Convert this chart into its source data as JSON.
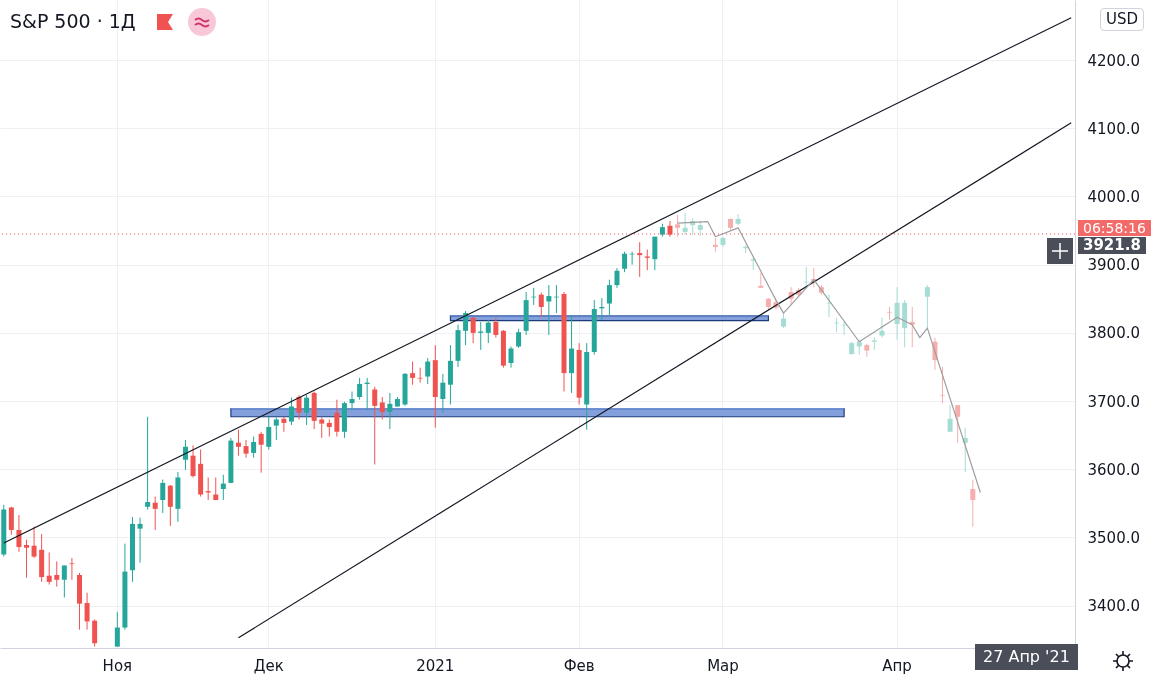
{
  "chart_data": {
    "type": "candlestick",
    "title": "S&P 500 · 1Д",
    "categories": [
      null,
      null,
      null,
      null,
      null,
      null,
      null,
      null,
      null,
      null,
      null,
      null,
      null,
      null,
      null,
      "Ноя",
      null,
      null,
      null,
      null,
      null,
      null,
      null,
      null,
      null,
      null,
      null,
      null,
      null,
      null,
      null,
      null,
      null,
      null,
      null,
      "Дек",
      null,
      null,
      null,
      null,
      null,
      null,
      null,
      null,
      null,
      null,
      null,
      null,
      null,
      null,
      null,
      null,
      null,
      null,
      null,
      null,
      null,
      "2021",
      null,
      null,
      null,
      null,
      null,
      null,
      null,
      null,
      null,
      null,
      null,
      null,
      null,
      null,
      null,
      null,
      null,
      null,
      "Фев",
      null,
      null,
      null,
      null,
      null,
      null,
      null,
      null,
      null,
      null,
      null,
      null,
      null,
      null,
      null,
      null,
      null,
      null,
      "Мар",
      null,
      null,
      null,
      null,
      null,
      null,
      null,
      null,
      null,
      null,
      null,
      null,
      null,
      null,
      null,
      null,
      null,
      null,
      null,
      null,
      null,
      null,
      "Апр",
      null,
      null,
      null,
      null,
      null,
      null,
      null,
      null,
      null,
      null,
      null,
      null,
      null,
      null,
      null,
      null,
      null,
      null,
      null,
      null,
      null,
      null,
      null
    ],
    "ohlc": [
      [
        3475,
        3548,
        3472,
        3541
      ],
      [
        3544,
        3545,
        3504,
        3511
      ],
      [
        3511,
        3533,
        3479,
        3486
      ],
      [
        3489,
        3497,
        3441,
        3485
      ],
      [
        3488,
        3516,
        3470,
        3472
      ],
      [
        3482,
        3505,
        3435,
        3442
      ],
      [
        3444,
        3478,
        3431,
        3435
      ],
      [
        3445,
        3465,
        3428,
        3438
      ],
      [
        3438,
        3459,
        3412,
        3459
      ],
      [
        3462,
        3470,
        3438,
        3461
      ],
      [
        3445,
        3448,
        3365,
        3403
      ],
      [
        3404,
        3419,
        3365,
        3377
      ],
      [
        3378,
        3380,
        3340,
        3345
      ],
      null,
      null,
      [
        3340,
        3391,
        3340,
        3368
      ],
      [
        3368,
        3491,
        3365,
        3450
      ],
      [
        3452,
        3530,
        3435,
        3520
      ],
      [
        3513,
        3529,
        3463,
        3520
      ],
      [
        3545,
        3677,
        3541,
        3552
      ],
      [
        3551,
        3560,
        3511,
        3542
      ],
      [
        3555,
        3585,
        3536,
        3580
      ],
      [
        3576,
        3577,
        3517,
        3545
      ],
      [
        3542,
        3596,
        3523,
        3588
      ],
      [
        3614,
        3643,
        3599,
        3633
      ],
      [
        3620,
        3635,
        3588,
        3590
      ],
      [
        3608,
        3629,
        3560,
        3563
      ],
      [
        3568,
        3588,
        3555,
        3566
      ],
      [
        3563,
        3588,
        3555,
        3555
      ],
      [
        3571,
        3592,
        3555,
        3579
      ],
      [
        3580,
        3646,
        3580,
        3642
      ],
      [
        3639,
        3658,
        3620,
        3633
      ],
      [
        3634,
        3643,
        3617,
        3623
      ],
      [
        3624,
        3648,
        3617,
        3640
      ],
      [
        3652,
        3655,
        3595,
        3636
      ],
      [
        3633,
        3677,
        3629,
        3662
      ],
      [
        3664,
        3676,
        3643,
        3673
      ],
      [
        3674,
        3677,
        3655,
        3668
      ],
      [
        3670,
        3705,
        3665,
        3692
      ],
      [
        3706,
        3709,
        3673,
        3683
      ],
      [
        3683,
        3709,
        3665,
        3705
      ],
      [
        3712,
        3714,
        3659,
        3671
      ],
      [
        3673,
        3676,
        3646,
        3667
      ],
      [
        3668,
        3673,
        3648,
        3662
      ],
      [
        3683,
        3702,
        3648,
        3655
      ],
      [
        3655,
        3699,
        3646,
        3697
      ],
      [
        3697,
        3714,
        3687,
        3703
      ],
      [
        3706,
        3734,
        3702,
        3725
      ],
      [
        3725,
        3734,
        3687,
        3727
      ],
      [
        3717,
        3721,
        3607,
        3693
      ],
      [
        3698,
        3706,
        3673,
        3684
      ],
      [
        3684,
        3712,
        3659,
        3696
      ],
      [
        3692,
        3706,
        3692,
        3703
      ],
      [
        3695,
        3741,
        3693,
        3740
      ],
      [
        3741,
        3758,
        3724,
        3734
      ],
      [
        3734,
        3749,
        3727,
        3733
      ],
      [
        3736,
        3763,
        3725,
        3758
      ],
      [
        3760,
        3782,
        3661,
        3706
      ],
      [
        3703,
        3740,
        3683,
        3727
      ],
      [
        3724,
        3782,
        3695,
        3759
      ],
      [
        3759,
        3812,
        3750,
        3804
      ],
      [
        3803,
        3832,
        3782,
        3829
      ],
      [
        3822,
        3823,
        3785,
        3800
      ],
      [
        3800,
        3816,
        3775,
        3802
      ],
      [
        3800,
        3819,
        3785,
        3815
      ],
      [
        3816,
        3822,
        3793,
        3797
      ],
      [
        3803,
        3804,
        3749,
        3752
      ],
      [
        3756,
        3780,
        3749,
        3777
      ],
      [
        3780,
        3806,
        3778,
        3801
      ],
      [
        3803,
        3860,
        3797,
        3848
      ],
      [
        3852,
        3866,
        3841,
        3853
      ],
      [
        3856,
        3859,
        3823,
        3838
      ],
      [
        3846,
        3870,
        3797,
        3854
      ],
      [
        3852,
        3870,
        3829,
        3853
      ],
      [
        3857,
        3860,
        3714,
        3741
      ],
      [
        3741,
        3826,
        3712,
        3777
      ],
      [
        3775,
        3785,
        3695,
        3705
      ],
      [
        3695,
        3785,
        3658,
        3772
      ],
      [
        3772,
        3848,
        3768,
        3835
      ],
      [
        3836,
        3851,
        3819,
        3838
      ],
      [
        3843,
        3878,
        3826,
        3870
      ],
      [
        3870,
        3895,
        3866,
        3891
      ],
      [
        3894,
        3919,
        3889,
        3916
      ],
      [
        3915,
        3919,
        3900,
        3916
      ],
      [
        3917,
        3933,
        3882,
        3914
      ],
      [
        3912,
        3922,
        3892,
        3910
      ],
      [
        3908,
        3941,
        3892,
        3941
      ],
      [
        3944,
        3960,
        3941,
        3955
      ],
      [
        3957,
        3964,
        3941,
        3944
      ],
      [
        3959,
        3973,
        3941,
        3954
      ],
      [
        3948,
        3976,
        3944,
        3954
      ],
      [
        3958,
        3968,
        3944,
        3964
      ],
      [
        3951,
        3964,
        3942,
        3958
      ],
      null,
      [
        3929,
        3939,
        3919,
        3926
      ],
      [
        3929,
        3941,
        3926,
        3939
      ],
      [
        3967,
        3968,
        3951,
        3954
      ],
      [
        3960,
        3974,
        3958,
        3967
      ],
      [
        3924,
        3929,
        3917,
        3926
      ],
      [
        3906,
        3911,
        3892,
        3908
      ],
      [
        3869,
        3888,
        3866,
        3866
      ],
      [
        3850,
        3851,
        3834,
        3838
      ],
      [
        3845,
        3848,
        3834,
        3837
      ],
      [
        3809,
        3830,
        3807,
        3821
      ],
      [
        3860,
        3867,
        3841,
        3850
      ],
      [
        3863,
        3866,
        3853,
        3856
      ],
      [
        3874,
        3897,
        3867,
        3875
      ],
      [
        3879,
        3895,
        3867,
        3875
      ],
      [
        3867,
        3870,
        3856,
        3859
      ],
      [
        3843,
        3856,
        3823,
        3844
      ],
      [
        3814,
        3822,
        3801,
        3815
      ],
      [
        3811,
        3816,
        3797,
        3812
      ],
      [
        3769,
        3787,
        3768,
        3785
      ],
      [
        3780,
        3790,
        3768,
        3787
      ],
      [
        3782,
        3784,
        3765,
        3774
      ],
      [
        3787,
        3794,
        3775,
        3789
      ],
      [
        3796,
        3822,
        3793,
        3803
      ],
      [
        3830,
        3838,
        3819,
        3829
      ],
      [
        3813,
        3867,
        3790,
        3844
      ],
      [
        3807,
        3848,
        3779,
        3844
      ],
      [
        3816,
        3838,
        3779,
        3812
      ],
      null,
      [
        3853,
        3870,
        3807,
        3867
      ],
      [
        3787,
        3793,
        3746,
        3760
      ],
      [
        3709,
        3750,
        3697,
        3708
      ],
      [
        3655,
        3694,
        3655,
        3674
      ],
      [
        3694,
        3694,
        3639,
        3677
      ],
      [
        3639,
        3661,
        3596,
        3646
      ],
      [
        3571,
        3585,
        3516,
        3555
      ],
      null,
      null,
      null,
      null,
      null,
      null,
      null,
      null,
      null,
      null,
      null,
      null,
      null
    ],
    "colors": [
      "#26a69a",
      "#ef5350",
      "#ef5350",
      "#ef5350",
      "#ef5350",
      "#ef5350",
      "#ef5350",
      "#ef5350",
      "#26a69a",
      "#ef5350",
      "#ef5350",
      "#ef5350",
      "#ef5350",
      null,
      null,
      "#26a69a",
      "#26a69a",
      "#26a69a",
      "#26a69a",
      "#26a69a",
      "#ef5350",
      "#26a69a",
      "#ef5350",
      "#26a69a",
      "#26a69a",
      "#ef5350",
      "#ef5350",
      "#ef5350",
      "#ef5350",
      "#26a69a",
      "#26a69a",
      "#ef5350",
      "#ef5350",
      "#26a69a",
      "#ef5350",
      "#26a69a",
      "#26a69a",
      "#ef5350",
      "#26a69a",
      "#ef5350",
      "#26a69a",
      "#ef5350",
      "#ef5350",
      "#ef5350",
      "#ef5350",
      "#26a69a",
      "#26a69a",
      "#26a69a",
      "#26a69a",
      "#ef5350",
      "#ef5350",
      "#26a69a",
      "#26a69a",
      "#26a69a",
      "#ef5350",
      "#ef5350",
      "#26a69a",
      "#ef5350",
      "#26a69a",
      "#26a69a",
      "#26a69a",
      "#26a69a",
      "#ef5350",
      "#26a69a",
      "#26a69a",
      "#ef5350",
      "#ef5350",
      "#26a69a",
      "#26a69a",
      "#26a69a",
      "#26a69a",
      "#ef5350",
      "#26a69a",
      "#26a69a",
      "#ef5350",
      "#26a69a",
      "#ef5350",
      "#26a69a",
      "#26a69a",
      "#26a69a",
      "#26a69a",
      "#26a69a",
      "#26a69a",
      "#26a69a",
      "#ef5350",
      "#ef5350",
      "#26a69a",
      "#26a69a",
      "#ef5350",
      "#f5aeac",
      "#a5dcd3",
      "#a5dcd3",
      "#a5dcd3",
      null,
      "#f5aeac",
      "#a5dcd3",
      "#f5aeac",
      "#a5dcd3",
      "#a5dcd3",
      "#a5dcd3",
      "#f5aeac",
      "#f5aeac",
      "#f5aeac",
      "#a5dcd3",
      "#f5aeac",
      "#f5aeac",
      "#a5dcd3",
      "#f5aeac",
      "#f5aeac",
      "#a5dcd3",
      "#a5dcd3",
      "#a5dcd3",
      "#a5dcd3",
      "#a5dcd3",
      "#f5aeac",
      "#a5dcd3",
      "#a5dcd3",
      "#f5aeac",
      "#a5dcd3",
      "#a5dcd3",
      "#f5aeac",
      null,
      "#a5dcd3",
      "#f5aeac",
      "#f5aeac",
      "#a5dcd3",
      "#f5aeac",
      "#a5dcd3",
      "#f5aeac",
      null,
      null,
      null,
      null,
      null,
      null,
      null,
      null,
      null,
      null,
      null,
      null,
      null
    ],
    "series": [
      {
        "type": "line",
        "color": "#131722",
        "values": [
          3492,
          null,
          null,
          null,
          null,
          null,
          null,
          null,
          null,
          null,
          null,
          null,
          null,
          null,
          null,
          null,
          null,
          null,
          null,
          null,
          null,
          null,
          null,
          null,
          null,
          null,
          null,
          null,
          null,
          null,
          null,
          null,
          null,
          null,
          null,
          null,
          null,
          null,
          null,
          null,
          null,
          null,
          null,
          null,
          null,
          null,
          null,
          null,
          null,
          null,
          null,
          null,
          null,
          null,
          null,
          null,
          null,
          null,
          null,
          null,
          null,
          null,
          null,
          null,
          null,
          null,
          null,
          null,
          null,
          null,
          null,
          null,
          null,
          null,
          null,
          null,
          null,
          null,
          null,
          null,
          null,
          null,
          null,
          null,
          null,
          null,
          null,
          null,
          null,
          null,
          null,
          null,
          null,
          null,
          null,
          null,
          null,
          null,
          null,
          null,
          null,
          null,
          null,
          null,
          null,
          null,
          null,
          null,
          null,
          null,
          null,
          null,
          null,
          null,
          null,
          null,
          null,
          null,
          null,
          null,
          null,
          null,
          null,
          null,
          null,
          null,
          null,
          null,
          null,
          null,
          null,
          null,
          null,
          null,
          null,
          null,
          null,
          null,
          null,
          null,
          null,
          4262
        ]
      },
      {
        "type": "line",
        "color": "#131722",
        "values": [
          null,
          null,
          null,
          null,
          null,
          null,
          null,
          null,
          null,
          null,
          null,
          null,
          null,
          null,
          null,
          null,
          null,
          null,
          null,
          null,
          null,
          null,
          null,
          null,
          null,
          null,
          null,
          null,
          null,
          null,
          null,
          3353,
          null,
          null,
          null,
          null,
          null,
          null,
          null,
          null,
          null,
          null,
          null,
          null,
          null,
          null,
          null,
          null,
          null,
          null,
          null,
          null,
          null,
          null,
          null,
          null,
          null,
          null,
          null,
          null,
          null,
          null,
          null,
          null,
          null,
          null,
          null,
          null,
          null,
          null,
          null,
          null,
          null,
          null,
          null,
          null,
          null,
          null,
          null,
          null,
          null,
          null,
          null,
          null,
          null,
          null,
          null,
          null,
          null,
          null,
          null,
          null,
          null,
          null,
          null,
          null,
          null,
          null,
          null,
          null,
          null,
          null,
          null,
          null,
          null,
          null,
          null,
          null,
          null,
          null,
          null,
          null,
          null,
          null,
          null,
          null,
          null,
          null,
          null,
          null,
          null,
          null,
          null,
          null,
          null,
          null,
          null,
          null,
          null,
          null,
          null,
          null,
          null,
          null,
          null,
          null,
          null,
          null,
          null,
          null,
          null,
          4108
        ]
      },
      {
        "type": "line",
        "color": "#9e9e9e",
        "values": [
          null,
          null,
          null,
          null,
          null,
          null,
          null,
          null,
          null,
          null,
          null,
          null,
          null,
          null,
          null,
          null,
          null,
          null,
          null,
          null,
          null,
          null,
          null,
          null,
          null,
          null,
          null,
          null,
          null,
          null,
          null,
          null,
          null,
          null,
          null,
          null,
          null,
          null,
          null,
          null,
          null,
          null,
          null,
          null,
          null,
          null,
          null,
          null,
          null,
          null,
          null,
          null,
          null,
          null,
          null,
          null,
          null,
          null,
          null,
          null,
          null,
          null,
          null,
          null,
          null,
          null,
          null,
          null,
          null,
          null,
          null,
          null,
          null,
          null,
          null,
          null,
          null,
          null,
          null,
          null,
          null,
          null,
          null,
          null,
          null,
          null,
          null,
          null,
          null,
          3961,
          null,
          null,
          null,
          3963,
          3941,
          null,
          null,
          3954,
          null,
          null,
          null,
          null,
          3848,
          3829,
          null,
          null,
          null,
          3878,
          null,
          null,
          null,
          null,
          null,
          3787,
          null,
          null,
          null,
          null,
          3823,
          null,
          3812,
          3793,
          3807,
          null,
          null,
          null,
          null,
          null,
          null,
          3566,
          null,
          null,
          null,
          null,
          null,
          null,
          null,
          null,
          null,
          null,
          null,
          null
        ]
      },
      {
        "type": "line",
        "color": "#6d8fd6",
        "upper": [
          null,
          null,
          null,
          null,
          null,
          null,
          null,
          null,
          null,
          null,
          null,
          null,
          null,
          null,
          null,
          null,
          null,
          null,
          null,
          null,
          null,
          null,
          null,
          null,
          null,
          null,
          null,
          null,
          null,
          null,
          null,
          null,
          null,
          null,
          null,
          null,
          null,
          null,
          null,
          null,
          null,
          null,
          null,
          null,
          null,
          null,
          null,
          null,
          null,
          null,
          null,
          null,
          null,
          null,
          null,
          null,
          null,
          null,
          null,
          3825,
          null,
          null,
          null,
          null,
          null,
          null,
          null,
          null,
          null,
          null,
          null,
          null,
          null,
          null,
          null,
          null,
          null,
          null,
          null,
          null,
          null,
          null,
          null,
          null,
          null,
          null,
          null,
          null,
          null,
          null,
          null,
          null,
          null,
          null,
          null,
          null,
          null,
          null,
          null,
          null,
          null,
          3825,
          null,
          null,
          null,
          null,
          null,
          null,
          null,
          null,
          null,
          null,
          null,
          null,
          null,
          null,
          null,
          null,
          null,
          null,
          null,
          null,
          null,
          null,
          null,
          null,
          null,
          null,
          null,
          null,
          null,
          null,
          null,
          null,
          null,
          null,
          null,
          null,
          null,
          null,
          null,
          null
        ],
        "lower": [
          null,
          null,
          null,
          null,
          null,
          null,
          null,
          null,
          null,
          null,
          null,
          null,
          null,
          null,
          null,
          null,
          null,
          null,
          null,
          null,
          null,
          null,
          null,
          null,
          null,
          null,
          null,
          null,
          null,
          null,
          null,
          null,
          null,
          null,
          null,
          null,
          null,
          null,
          null,
          null,
          null,
          null,
          null,
          null,
          null,
          null,
          null,
          null,
          null,
          null,
          null,
          null,
          null,
          null,
          null,
          null,
          null,
          null,
          null,
          3818,
          null,
          null,
          null,
          null,
          null,
          null,
          null,
          null,
          null,
          null,
          null,
          null,
          null,
          null,
          null,
          null,
          null,
          null,
          null,
          null,
          null,
          null,
          null,
          null,
          null,
          null,
          null,
          null,
          null,
          null,
          null,
          null,
          null,
          null,
          null,
          null,
          null,
          null,
          null,
          null,
          null,
          3818,
          null,
          null,
          null,
          null,
          null,
          null,
          null,
          null,
          null,
          null,
          null,
          null,
          null,
          null,
          null,
          null,
          null,
          null,
          null,
          null,
          null,
          null,
          null,
          null,
          null,
          null,
          null,
          null,
          null,
          null,
          null,
          null,
          null,
          null,
          null,
          null,
          null,
          null,
          null,
          null
        ],
        "values": [
          null,
          null,
          null,
          null,
          null,
          null,
          null,
          null,
          null,
          null,
          null,
          null,
          null,
          null,
          null,
          null,
          null,
          null,
          null,
          null,
          null,
          null,
          null,
          null,
          null,
          null,
          null,
          null,
          null,
          null,
          null,
          null,
          null,
          null,
          null,
          null,
          null,
          null,
          null,
          null,
          null,
          null,
          null,
          null,
          null,
          null,
          null,
          null,
          null,
          null,
          null,
          null,
          null,
          null,
          null,
          null,
          null,
          null,
          null,
          3825,
          null,
          null,
          null,
          null,
          null,
          null,
          null,
          null,
          null,
          null,
          null,
          null,
          null,
          null,
          null,
          null,
          null,
          null,
          null,
          null,
          null,
          null,
          null,
          null,
          null,
          null,
          null,
          null,
          null,
          null,
          null,
          null,
          null,
          null,
          null,
          null,
          null,
          null,
          null,
          null,
          null,
          3825,
          null,
          null,
          null,
          null,
          null,
          null,
          null,
          null,
          null,
          null,
          null,
          null,
          null,
          null,
          null,
          null,
          null,
          null,
          null,
          null,
          null,
          null,
          null,
          null,
          null,
          null,
          null,
          null,
          null,
          null,
          null,
          null,
          null,
          null,
          null,
          null,
          null,
          null,
          null,
          null
        ]
      },
      {
        "type": "line",
        "color": "#6d8fd6",
        "upper": [
          null,
          null,
          null,
          null,
          null,
          null,
          null,
          null,
          null,
          null,
          null,
          null,
          null,
          null,
          null,
          null,
          null,
          null,
          null,
          null,
          null,
          null,
          null,
          null,
          null,
          null,
          null,
          null,
          null,
          null,
          3689,
          null,
          null,
          null,
          null,
          null,
          null,
          null,
          null,
          null,
          null,
          null,
          null,
          null,
          null,
          null,
          null,
          null,
          null,
          null,
          null,
          null,
          null,
          null,
          null,
          null,
          null,
          null,
          null,
          null,
          null,
          null,
          null,
          null,
          null,
          null,
          null,
          null,
          null,
          null,
          null,
          null,
          null,
          null,
          null,
          null,
          null,
          null,
          null,
          null,
          null,
          null,
          null,
          null,
          null,
          null,
          null,
          null,
          null,
          null,
          null,
          null,
          null,
          null,
          null,
          null,
          null,
          null,
          null,
          null,
          null,
          null,
          null,
          null,
          null,
          null,
          null,
          null,
          null,
          null,
          null,
          3689,
          null,
          null,
          null,
          null,
          null,
          null,
          null,
          null,
          null,
          null,
          null,
          null,
          null,
          null,
          null,
          null,
          null,
          null,
          null,
          null,
          null,
          null,
          null,
          null,
          null,
          null,
          null,
          null,
          null,
          null
        ],
        "lower": [
          null,
          null,
          null,
          null,
          null,
          null,
          null,
          null,
          null,
          null,
          null,
          null,
          null,
          null,
          null,
          null,
          null,
          null,
          null,
          null,
          null,
          null,
          null,
          null,
          null,
          null,
          null,
          null,
          null,
          null,
          3677,
          null,
          null,
          null,
          null,
          null,
          null,
          null,
          null,
          null,
          null,
          null,
          null,
          null,
          null,
          null,
          null,
          null,
          null,
          null,
          null,
          null,
          null,
          null,
          null,
          null,
          null,
          null,
          null,
          null,
          null,
          null,
          null,
          null,
          null,
          null,
          null,
          null,
          null,
          null,
          null,
          null,
          null,
          null,
          null,
          null,
          null,
          null,
          null,
          null,
          null,
          null,
          null,
          null,
          null,
          null,
          null,
          null,
          null,
          null,
          null,
          null,
          null,
          null,
          null,
          null,
          null,
          null,
          null,
          null,
          null,
          null,
          null,
          null,
          null,
          null,
          null,
          null,
          null,
          null,
          null,
          3677,
          null,
          null,
          null,
          null,
          null,
          null,
          null,
          null,
          null,
          null,
          null,
          null,
          null,
          null,
          null,
          null,
          null,
          null,
          null,
          null,
          null,
          null,
          null,
          null,
          null,
          null,
          null,
          null,
          null,
          null
        ],
        "values": [
          null,
          null,
          null,
          null,
          null,
          null,
          null,
          null,
          null,
          null,
          null,
          null,
          null,
          null,
          null,
          null,
          null,
          null,
          null,
          null,
          null,
          null,
          null,
          null,
          null,
          null,
          null,
          null,
          null,
          null,
          3689,
          null,
          null,
          null,
          null,
          null,
          null,
          null,
          null,
          null,
          null,
          null,
          null,
          null,
          null,
          null,
          null,
          null,
          null,
          null,
          null,
          null,
          null,
          null,
          null,
          null,
          null,
          null,
          null,
          null,
          null,
          null,
          null,
          null,
          null,
          null,
          null,
          null,
          null,
          null,
          null,
          null,
          null,
          null,
          null,
          null,
          null,
          null,
          null,
          null,
          null,
          null,
          null,
          null,
          null,
          null,
          null,
          null,
          null,
          null,
          null,
          null,
          null,
          null,
          null,
          null,
          null,
          null,
          null,
          null,
          null,
          null,
          null,
          null,
          null,
          null,
          null,
          null,
          null,
          null,
          null,
          3689,
          null,
          null,
          null,
          null,
          null,
          null,
          null,
          null,
          null,
          null,
          null,
          null,
          null,
          null,
          null,
          null,
          null,
          null,
          null,
          null,
          null,
          null,
          null,
          null,
          null,
          null,
          null,
          null,
          null,
          null
        ]
      }
    ],
    "ylim": [
      3338,
      4288
    ],
    "yticks": [
      {
        "value": 3400,
        "label": "3400.0"
      },
      {
        "value": 3500,
        "label": "3500.0"
      },
      {
        "value": 3600,
        "label": "3600.0"
      },
      {
        "value": 3700,
        "label": "3700.0"
      },
      {
        "value": 3800,
        "label": "3800.0"
      },
      {
        "value": 3900,
        "label": "3900.0"
      },
      {
        "value": 4000,
        "label": "4000.0"
      },
      {
        "value": 4100,
        "label": "4100.0"
      },
      {
        "value": 4200,
        "label": "4200.0"
      }
    ],
    "grid": true,
    "ref_lines": [
      {
        "axis": "y",
        "value": 3945,
        "color": "#ef5350",
        "line_style": "dotted"
      }
    ],
    "annotations": [
      "USD",
      "06:58:16",
      "3921.8",
      "27 Апр '21"
    ]
  }
}
